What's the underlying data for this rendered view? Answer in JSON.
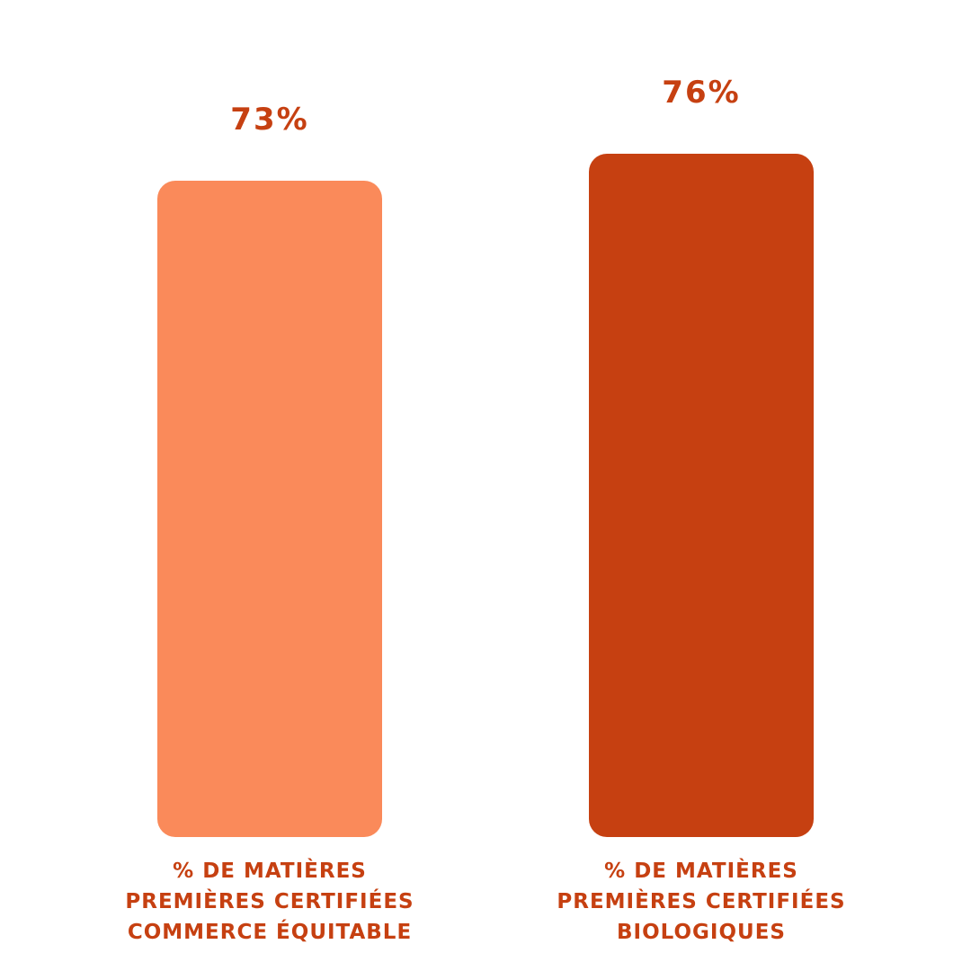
{
  "chart_data": {
    "type": "bar",
    "categories": [
      [
        "% DE MATIÈRES",
        "PREMIÈRES CERTIFIÉES",
        "COMMERCE ÉQUITABLE"
      ],
      [
        "% DE MATIÈRES",
        "PREMIÈRES CERTIFIÉES",
        "BIOLOGIQUES"
      ]
    ],
    "values": [
      73,
      76
    ],
    "value_labels": [
      "73%",
      "76%"
    ],
    "bar_colors": [
      "#fa8a5a",
      "#c64011"
    ],
    "label_color": "#c64011",
    "ylim": [
      0,
      100
    ],
    "grid": false
  }
}
